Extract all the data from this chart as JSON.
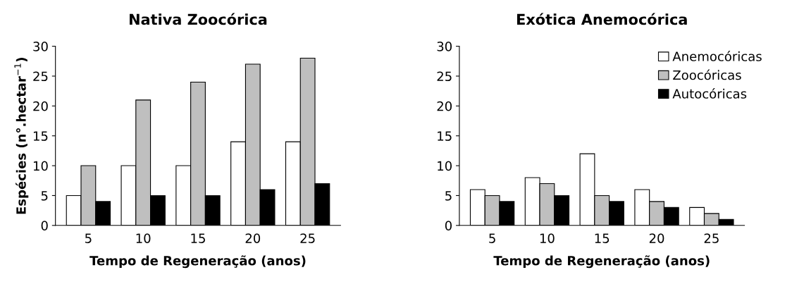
{
  "chart_data": [
    {
      "type": "bar",
      "title": "Nativa Zoocórica",
      "xlabel": "Tempo de Regeneração (anos)",
      "ylabel": "Espécies (n°.hectar$^{−1}$)",
      "categories": [
        "5",
        "10",
        "15",
        "20",
        "25"
      ],
      "ylim": [
        0,
        30
      ],
      "yticks": [
        0,
        5,
        10,
        15,
        20,
        25,
        30
      ],
      "legend": false,
      "series": [
        {
          "color": "#ffffff",
          "values": [
            5,
            10,
            10,
            14,
            14
          ]
        },
        {
          "color": "#bfbfbf",
          "values": [
            10,
            21,
            24,
            27,
            28
          ]
        },
        {
          "color": "#000000",
          "values": [
            4,
            5,
            5,
            6,
            7
          ]
        }
      ]
    },
    {
      "type": "bar",
      "title": "Exótica Anemocórica",
      "xlabel": "Tempo de Regeneração (anos)",
      "categories": [
        "5",
        "10",
        "15",
        "20",
        "25"
      ],
      "ylim": [
        0,
        30
      ],
      "yticks": [
        0,
        5,
        10,
        15,
        20,
        25,
        30
      ],
      "legend": "top right",
      "series": [
        {
          "name": "Anemocóricas",
          "color": "#ffffff",
          "values": [
            6,
            8,
            12,
            6,
            3
          ]
        },
        {
          "name": "Zoocóricas",
          "color": "#bfbfbf",
          "values": [
            5,
            7,
            5,
            4,
            2
          ]
        },
        {
          "name": "Autocóricas",
          "color": "#000000",
          "values": [
            4,
            5,
            4,
            3,
            1
          ]
        }
      ]
    }
  ]
}
